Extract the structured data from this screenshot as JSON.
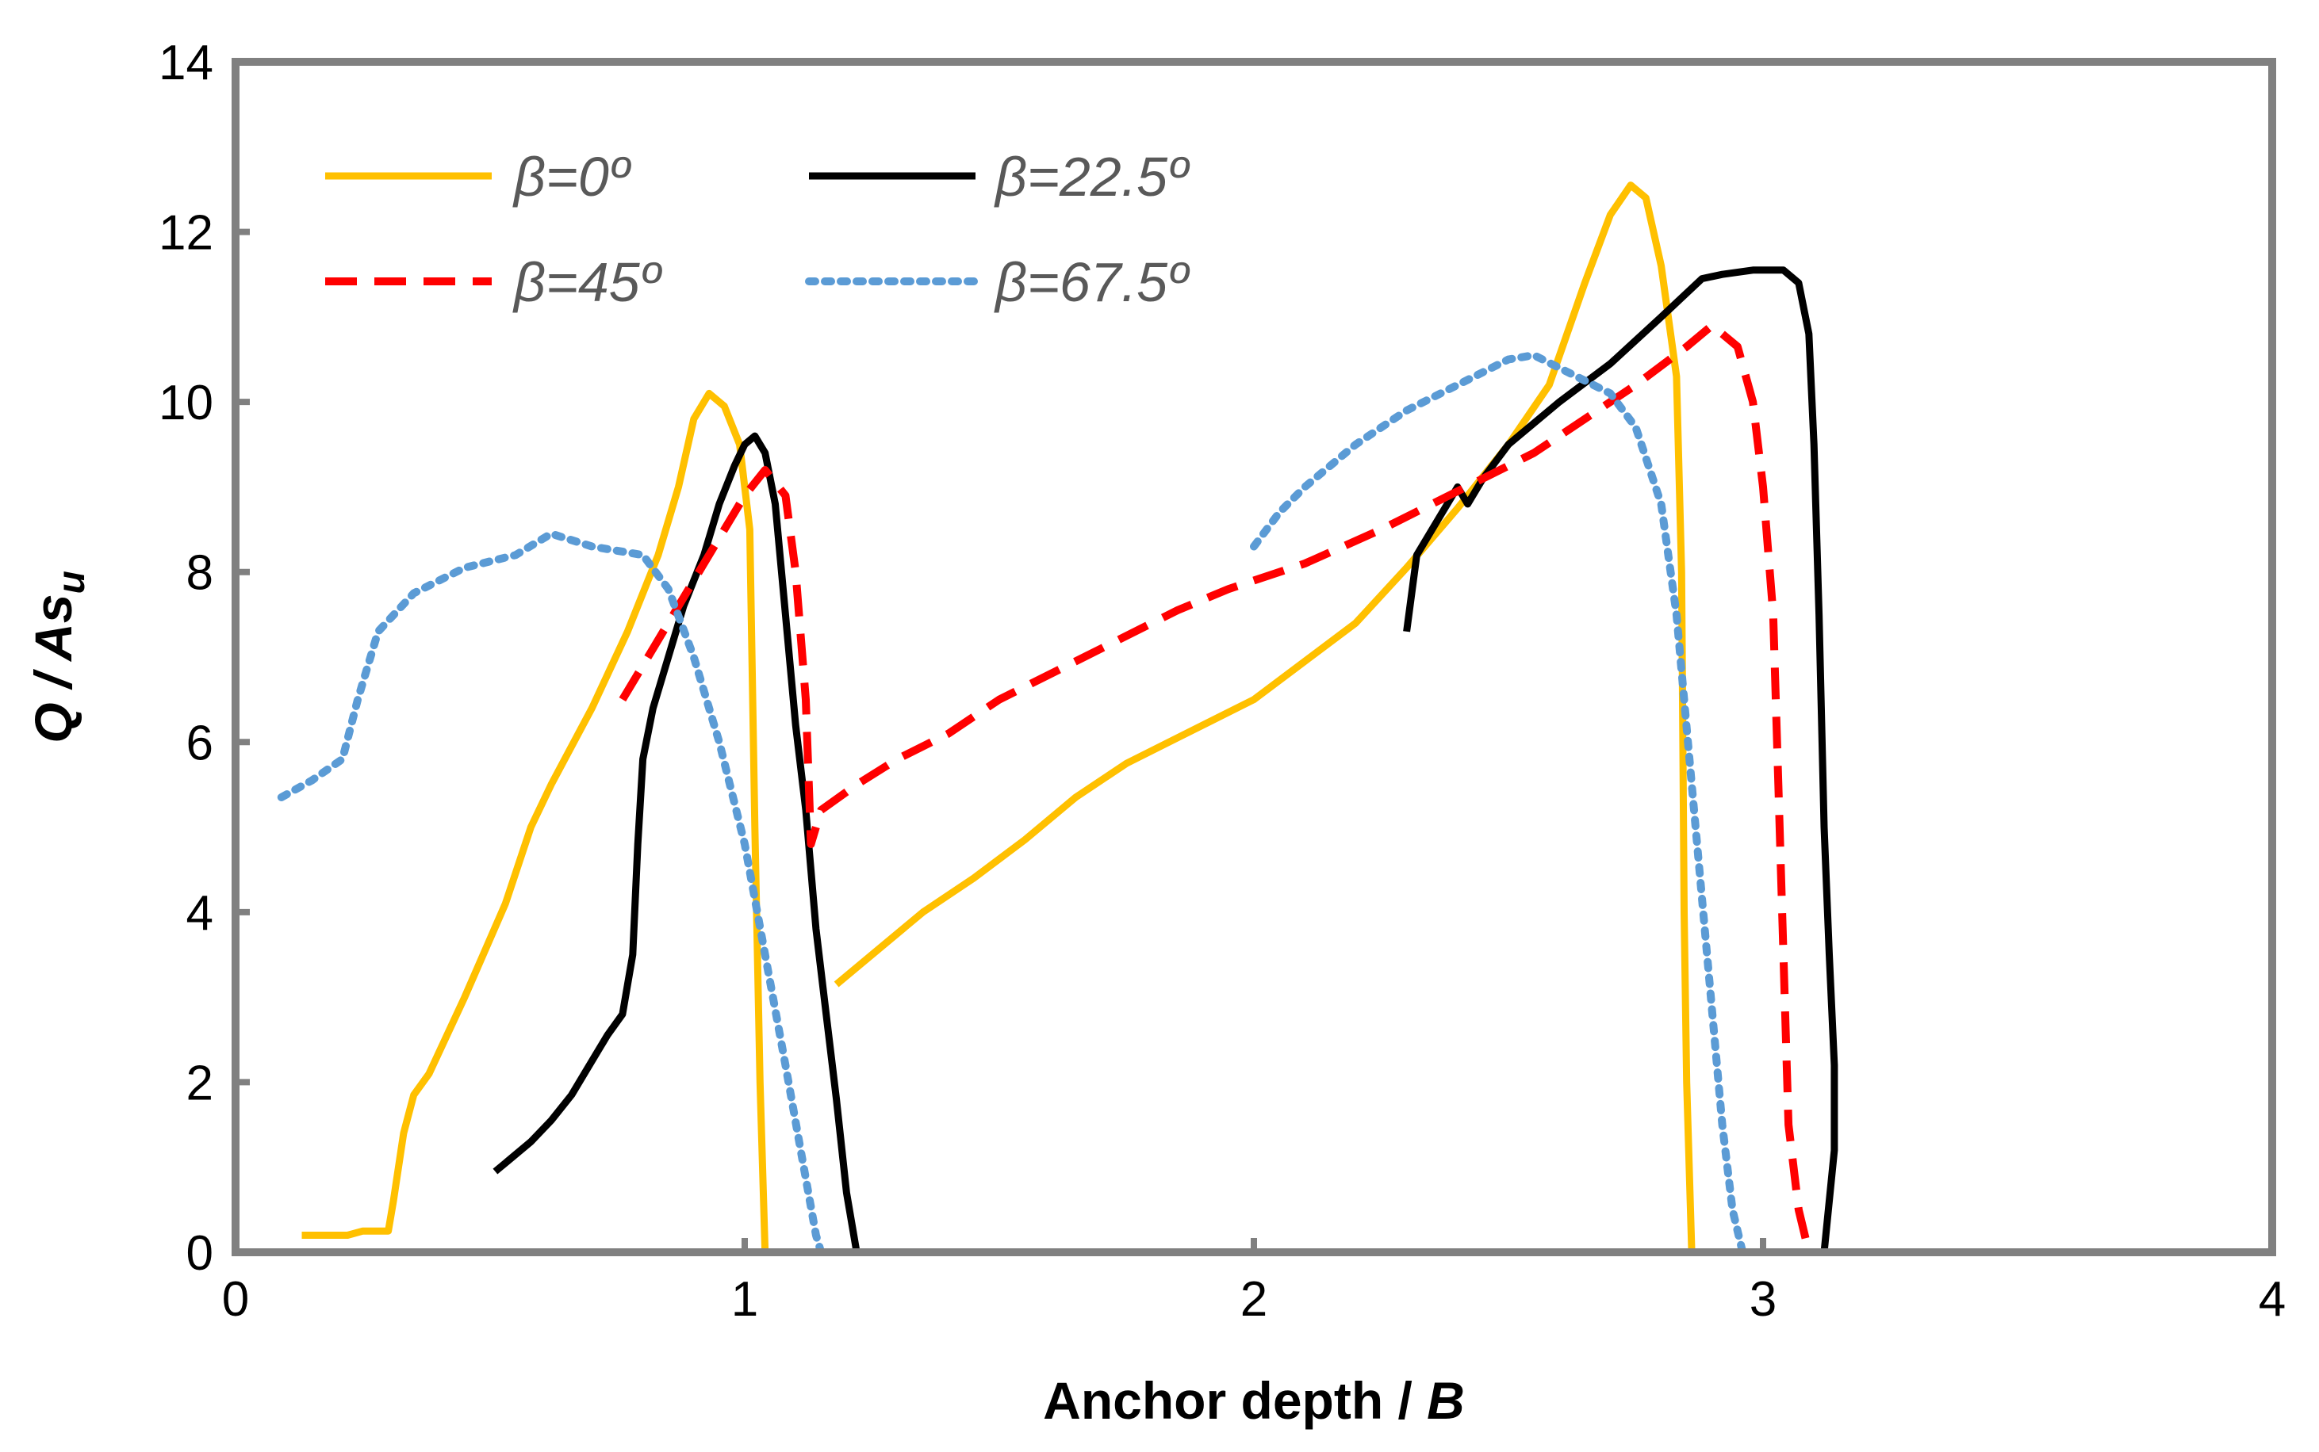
{
  "chart_data": {
    "type": "line",
    "title": "",
    "xlabel": "Anchor depth / B",
    "xlabel_parts": {
      "text": "Anchor depth / ",
      "var": "B"
    },
    "ylabel": "Q / As_u",
    "ylabel_parts": {
      "text": "Q / As",
      "sub": "u"
    },
    "xlim": [
      0,
      4
    ],
    "ylim": [
      0,
      14
    ],
    "xticks": [
      "0",
      "1",
      "2",
      "3",
      "4"
    ],
    "yticks": [
      "0",
      "2",
      "4",
      "6",
      "8",
      "10",
      "12",
      "14"
    ],
    "grid": false,
    "legend_position": "top-left",
    "frame_color": "#808080",
    "series": [
      {
        "name": "β=0º",
        "color": "#FFC000",
        "dash": "solid",
        "points": [
          [
            0.13,
            0.2
          ],
          [
            0.22,
            0.2
          ],
          [
            0.25,
            0.25
          ],
          [
            0.3,
            0.25
          ],
          [
            0.31,
            0.6
          ],
          [
            0.33,
            1.4
          ],
          [
            0.35,
            1.85
          ],
          [
            0.38,
            2.1
          ],
          [
            0.45,
            3.0
          ],
          [
            0.53,
            4.1
          ],
          [
            0.58,
            5.0
          ],
          [
            0.62,
            5.5
          ],
          [
            0.7,
            6.4
          ],
          [
            0.77,
            7.3
          ],
          [
            0.83,
            8.2
          ],
          [
            0.87,
            9.0
          ],
          [
            0.9,
            9.8
          ],
          [
            0.93,
            10.1
          ],
          [
            0.96,
            9.95
          ],
          [
            0.99,
            9.5
          ],
          [
            1.01,
            8.5
          ],
          [
            1.02,
            5.0
          ],
          [
            1.03,
            2.0
          ],
          [
            1.04,
            0.0
          ],
          null,
          [
            1.18,
            3.15
          ],
          [
            1.25,
            3.5
          ],
          [
            1.35,
            4.0
          ],
          [
            1.45,
            4.4
          ],
          [
            1.55,
            4.85
          ],
          [
            1.65,
            5.35
          ],
          [
            1.75,
            5.75
          ],
          [
            1.85,
            6.05
          ],
          [
            2.0,
            6.5
          ],
          [
            2.1,
            6.95
          ],
          [
            2.2,
            7.4
          ],
          [
            2.3,
            8.05
          ],
          [
            2.4,
            8.75
          ],
          [
            2.5,
            9.5
          ],
          [
            2.58,
            10.2
          ],
          [
            2.65,
            11.4
          ],
          [
            2.7,
            12.2
          ],
          [
            2.74,
            12.55
          ],
          [
            2.77,
            12.4
          ],
          [
            2.8,
            11.6
          ],
          [
            2.83,
            10.3
          ],
          [
            2.84,
            8.0
          ],
          [
            2.845,
            4.0
          ],
          [
            2.85,
            2.0
          ],
          [
            2.86,
            0.0
          ]
        ]
      },
      {
        "name": "β=22.5º",
        "color": "#000000",
        "dash": "solid",
        "points": [
          [
            0.51,
            0.95
          ],
          [
            0.54,
            1.1
          ],
          [
            0.58,
            1.3
          ],
          [
            0.62,
            1.55
          ],
          [
            0.66,
            1.85
          ],
          [
            0.7,
            2.25
          ],
          [
            0.73,
            2.55
          ],
          [
            0.76,
            2.8
          ],
          [
            0.78,
            3.5
          ],
          [
            0.79,
            4.8
          ],
          [
            0.8,
            5.8
          ],
          [
            0.82,
            6.4
          ],
          [
            0.85,
            7.0
          ],
          [
            0.88,
            7.6
          ],
          [
            0.92,
            8.2
          ],
          [
            0.95,
            8.8
          ],
          [
            0.98,
            9.25
          ],
          [
            1.0,
            9.5
          ],
          [
            1.02,
            9.6
          ],
          [
            1.04,
            9.4
          ],
          [
            1.06,
            8.8
          ],
          [
            1.08,
            7.5
          ],
          [
            1.1,
            6.2
          ],
          [
            1.12,
            5.2
          ],
          [
            1.14,
            3.8
          ],
          [
            1.16,
            2.8
          ],
          [
            1.18,
            1.8
          ],
          [
            1.2,
            0.7
          ],
          [
            1.22,
            0.0
          ],
          null,
          [
            2.3,
            7.3
          ],
          [
            2.32,
            8.2
          ],
          [
            2.35,
            8.5
          ],
          [
            2.4,
            9.0
          ],
          [
            2.42,
            8.8
          ],
          [
            2.45,
            9.1
          ],
          [
            2.5,
            9.5
          ],
          [
            2.6,
            10.0
          ],
          [
            2.7,
            10.45
          ],
          [
            2.8,
            11.0
          ],
          [
            2.88,
            11.45
          ],
          [
            2.92,
            11.5
          ],
          [
            2.98,
            11.55
          ],
          [
            3.04,
            11.55
          ],
          [
            3.07,
            11.4
          ],
          [
            3.09,
            10.8
          ],
          [
            3.1,
            9.5
          ],
          [
            3.11,
            7.5
          ],
          [
            3.12,
            5.0
          ],
          [
            3.13,
            3.5
          ],
          [
            3.14,
            2.2
          ],
          [
            3.14,
            1.2
          ],
          [
            3.12,
            0.0
          ]
        ]
      },
      {
        "name": "β=45º",
        "color": "#FF0000",
        "dash": "dashed",
        "points": [
          [
            0.76,
            6.5
          ],
          [
            0.82,
            7.1
          ],
          [
            0.9,
            7.9
          ],
          [
            0.95,
            8.4
          ],
          [
            1.0,
            8.9
          ],
          [
            1.04,
            9.2
          ],
          [
            1.08,
            8.9
          ],
          [
            1.1,
            8.0
          ],
          [
            1.12,
            6.5
          ],
          [
            1.13,
            4.8
          ],
          [
            1.15,
            5.2
          ],
          [
            1.22,
            5.5
          ],
          [
            1.3,
            5.8
          ],
          [
            1.4,
            6.1
          ],
          [
            1.5,
            6.5
          ],
          [
            1.6,
            6.8
          ],
          [
            1.7,
            7.1
          ],
          [
            1.85,
            7.55
          ],
          [
            1.95,
            7.8
          ],
          [
            2.1,
            8.1
          ],
          [
            2.25,
            8.5
          ],
          [
            2.4,
            8.95
          ],
          [
            2.55,
            9.4
          ],
          [
            2.65,
            9.8
          ],
          [
            2.75,
            10.2
          ],
          [
            2.85,
            10.65
          ],
          [
            2.9,
            10.9
          ],
          [
            2.95,
            10.65
          ],
          [
            2.98,
            10.0
          ],
          [
            3.0,
            9.0
          ],
          [
            3.02,
            7.5
          ],
          [
            3.03,
            5.5
          ],
          [
            3.04,
            3.5
          ],
          [
            3.05,
            1.5
          ],
          [
            3.07,
            0.5
          ],
          [
            3.09,
            0.0
          ]
        ]
      },
      {
        "name": "β=67.5º",
        "color": "#5B9BD5",
        "dash": "dotted",
        "points": [
          [
            0.09,
            5.35
          ],
          [
            0.15,
            5.55
          ],
          [
            0.21,
            5.8
          ],
          [
            0.24,
            6.5
          ],
          [
            0.28,
            7.3
          ],
          [
            0.35,
            7.75
          ],
          [
            0.45,
            8.05
          ],
          [
            0.55,
            8.2
          ],
          [
            0.62,
            8.45
          ],
          [
            0.7,
            8.3
          ],
          [
            0.8,
            8.2
          ],
          [
            0.85,
            7.8
          ],
          [
            0.9,
            7.0
          ],
          [
            0.95,
            6.0
          ],
          [
            1.0,
            4.8
          ],
          [
            1.04,
            3.5
          ],
          [
            1.08,
            2.2
          ],
          [
            1.11,
            1.2
          ],
          [
            1.14,
            0.2
          ],
          [
            1.15,
            0.0
          ],
          null,
          [
            2.0,
            8.3
          ],
          [
            2.05,
            8.7
          ],
          [
            2.1,
            9.0
          ],
          [
            2.2,
            9.5
          ],
          [
            2.3,
            9.9
          ],
          [
            2.4,
            10.2
          ],
          [
            2.5,
            10.5
          ],
          [
            2.55,
            10.55
          ],
          [
            2.6,
            10.4
          ],
          [
            2.7,
            10.1
          ],
          [
            2.75,
            9.7
          ],
          [
            2.8,
            8.8
          ],
          [
            2.83,
            7.5
          ],
          [
            2.86,
            5.5
          ],
          [
            2.89,
            3.5
          ],
          [
            2.92,
            1.5
          ],
          [
            2.94,
            0.5
          ],
          [
            2.96,
            0.0
          ]
        ]
      }
    ]
  }
}
